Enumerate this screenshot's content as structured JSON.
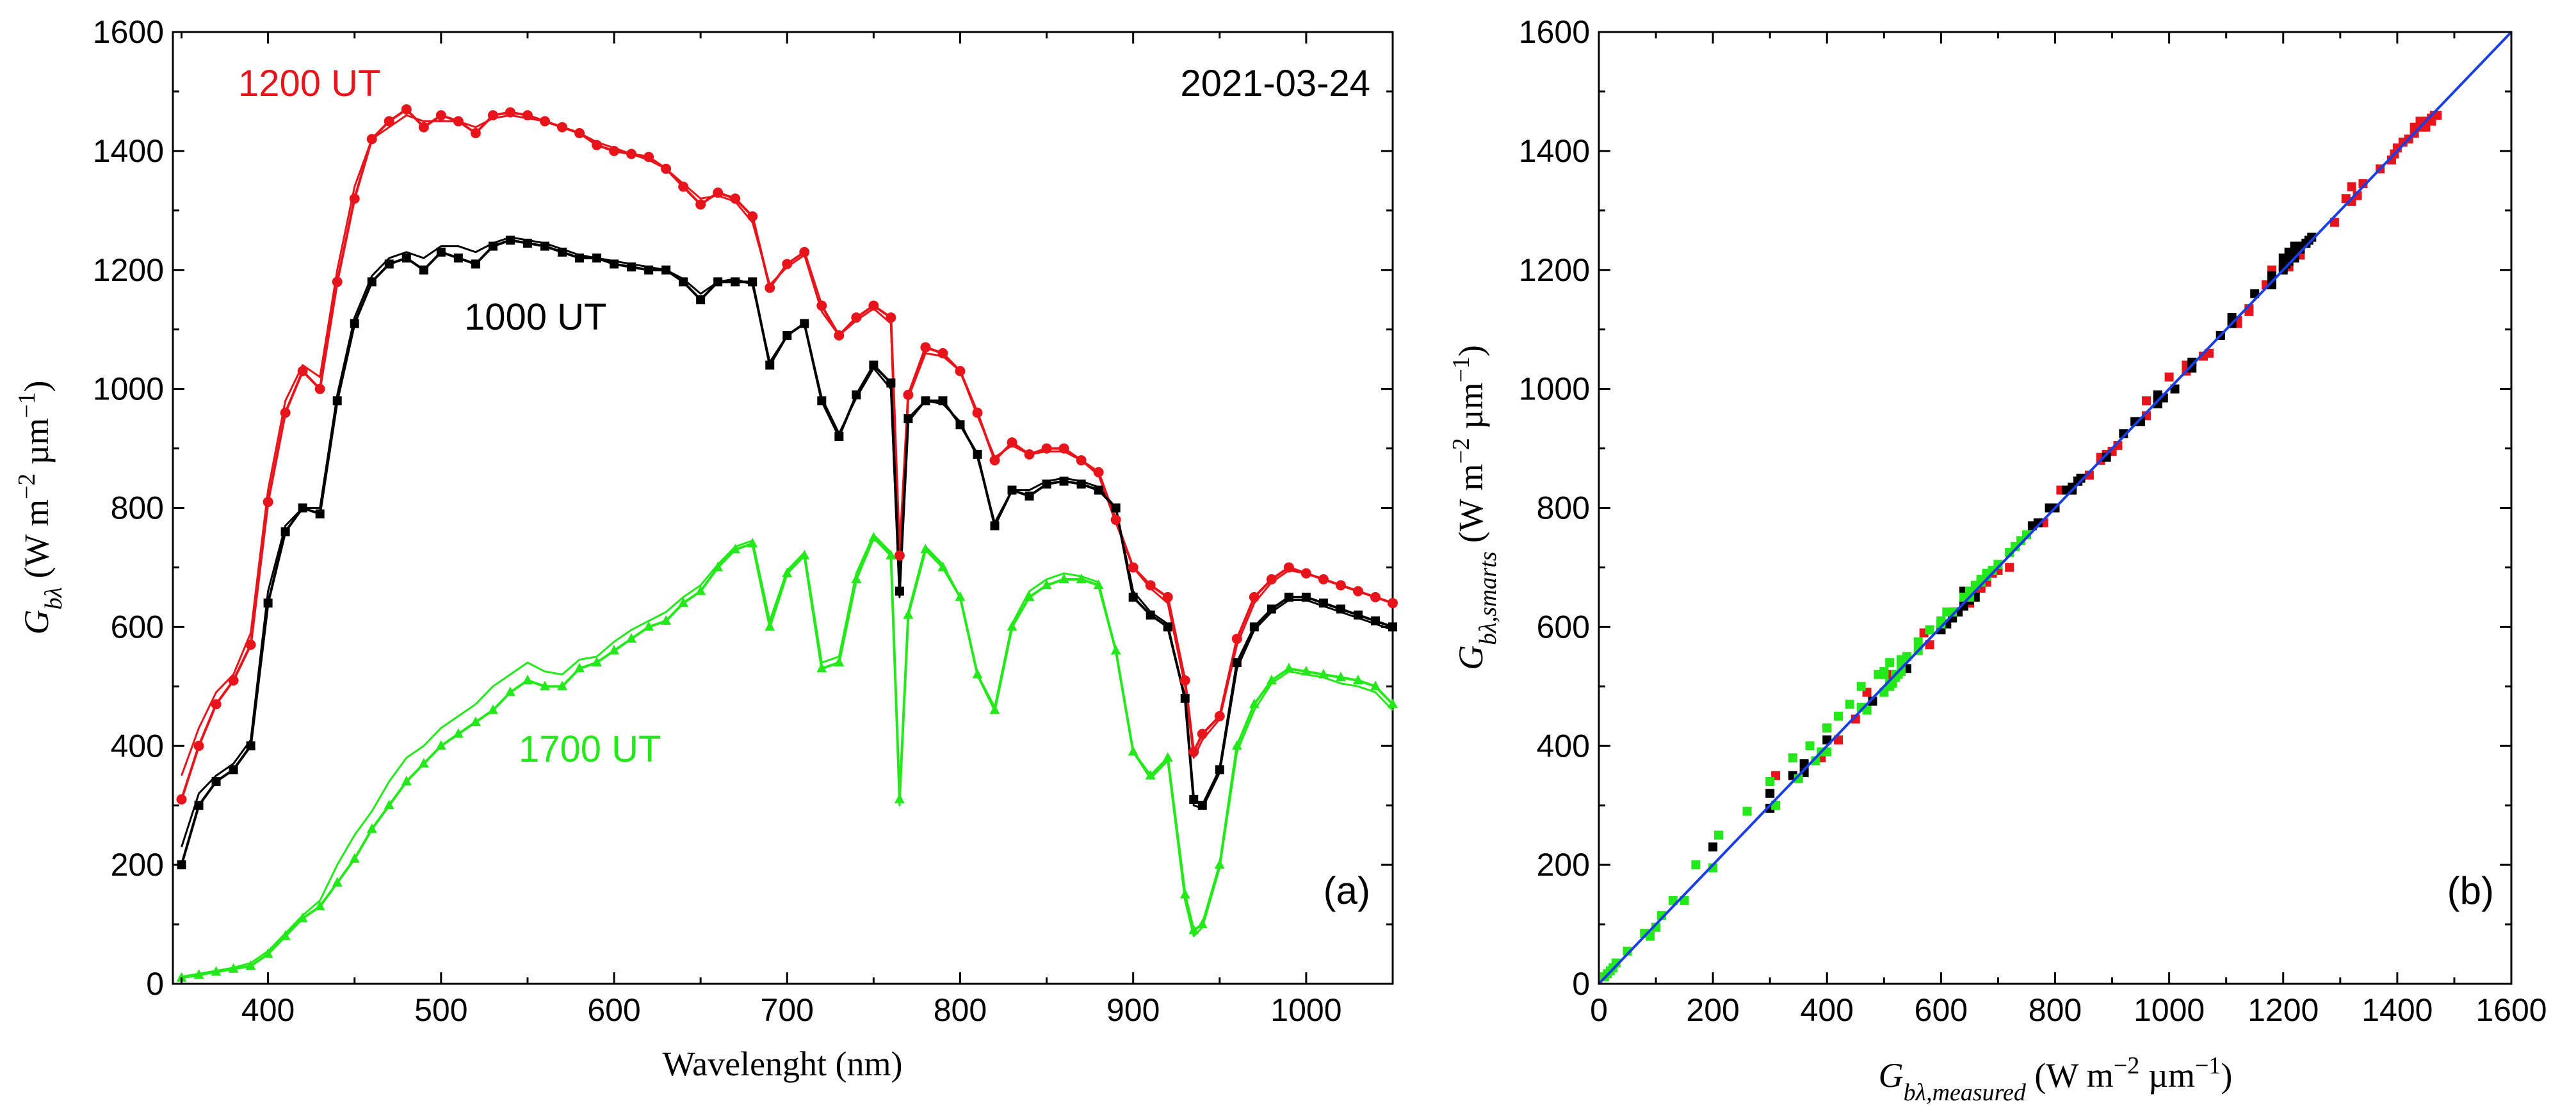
{
  "colors": {
    "red": "#e8141c",
    "black": "#000000",
    "green": "#23e81a",
    "blue": "#1a3ee6"
  },
  "chart_data": [
    {
      "panel": "a",
      "type": "line",
      "panel_label": "(a)",
      "date_label": "2021-03-24",
      "xlabel": "Wavelenght (nm)",
      "ylabel": {
        "symbol": "Gbλ",
        "unit": "(W m-2 µm-1)"
      },
      "xlim": [
        345,
        1050
      ],
      "ylim": [
        0,
        1600
      ],
      "grid": false,
      "xticks": [
        "400",
        "500",
        "600",
        "700",
        "800",
        "900",
        "1000"
      ],
      "yticks": [
        "0",
        "200",
        "400",
        "600",
        "800",
        "1000",
        "1200",
        "1400",
        "1600"
      ],
      "series": [
        {
          "name": "1200 UT",
          "color": "#e8141c",
          "marker": "circle",
          "x": [
            350,
            360,
            370,
            380,
            390,
            400,
            410,
            420,
            430,
            440,
            450,
            460,
            470,
            480,
            490,
            500,
            510,
            520,
            530,
            540,
            550,
            560,
            570,
            580,
            590,
            600,
            610,
            620,
            630,
            640,
            650,
            660,
            670,
            680,
            690,
            700,
            710,
            720,
            730,
            740,
            750,
            760,
            765,
            770,
            780,
            790,
            800,
            810,
            820,
            830,
            840,
            850,
            860,
            870,
            880,
            890,
            900,
            910,
            920,
            930,
            935,
            940,
            950,
            960,
            970,
            980,
            990,
            1000,
            1010,
            1020,
            1030,
            1040,
            1050
          ],
          "y": [
            310,
            400,
            470,
            510,
            570,
            810,
            960,
            1030,
            1000,
            1180,
            1320,
            1420,
            1450,
            1470,
            1440,
            1460,
            1450,
            1430,
            1460,
            1465,
            1460,
            1450,
            1440,
            1430,
            1410,
            1400,
            1395,
            1390,
            1370,
            1340,
            1310,
            1330,
            1320,
            1290,
            1170,
            1210,
            1230,
            1140,
            1090,
            1120,
            1140,
            1120,
            720,
            990,
            1070,
            1060,
            1030,
            960,
            880,
            910,
            890,
            900,
            900,
            880,
            860,
            780,
            700,
            670,
            650,
            510,
            390,
            420,
            450,
            580,
            650,
            680,
            700,
            690,
            680,
            670,
            660,
            650,
            640
          ],
          "model_y": [
            350,
            430,
            490,
            520,
            590,
            830,
            980,
            1040,
            1020,
            1200,
            1340,
            1420,
            1440,
            1460,
            1450,
            1450,
            1450,
            1440,
            1455,
            1460,
            1455,
            1450,
            1440,
            1430,
            1415,
            1405,
            1395,
            1385,
            1370,
            1345,
            1320,
            1325,
            1315,
            1280,
            1175,
            1205,
            1225,
            1130,
            1090,
            1115,
            1135,
            1110,
            700,
            985,
            1060,
            1055,
            1030,
            955,
            885,
            905,
            890,
            895,
            895,
            880,
            855,
            775,
            700,
            665,
            640,
            500,
            380,
            410,
            445,
            570,
            640,
            675,
            695,
            690,
            680,
            670,
            660,
            650,
            640
          ]
        },
        {
          "name": "1000 UT",
          "color": "#000000",
          "marker": "square",
          "x": [
            350,
            360,
            370,
            380,
            390,
            400,
            410,
            420,
            430,
            440,
            450,
            460,
            470,
            480,
            490,
            500,
            510,
            520,
            530,
            540,
            550,
            560,
            570,
            580,
            590,
            600,
            610,
            620,
            630,
            640,
            650,
            660,
            670,
            680,
            690,
            700,
            710,
            720,
            730,
            740,
            750,
            760,
            765,
            770,
            780,
            790,
            800,
            810,
            820,
            830,
            840,
            850,
            860,
            870,
            880,
            890,
            900,
            910,
            920,
            930,
            935,
            940,
            950,
            960,
            970,
            980,
            990,
            1000,
            1010,
            1020,
            1030,
            1040,
            1050
          ],
          "y": [
            200,
            300,
            340,
            360,
            400,
            640,
            760,
            800,
            790,
            980,
            1110,
            1180,
            1210,
            1220,
            1200,
            1230,
            1220,
            1210,
            1240,
            1250,
            1245,
            1240,
            1230,
            1220,
            1220,
            1210,
            1205,
            1200,
            1200,
            1180,
            1150,
            1180,
            1180,
            1180,
            1040,
            1090,
            1110,
            980,
            920,
            990,
            1040,
            1010,
            660,
            950,
            980,
            980,
            940,
            890,
            770,
            830,
            820,
            840,
            845,
            840,
            830,
            800,
            650,
            620,
            600,
            480,
            310,
            300,
            360,
            540,
            600,
            630,
            650,
            650,
            640,
            630,
            620,
            610,
            600
          ],
          "model_y": [
            230,
            320,
            350,
            370,
            410,
            660,
            770,
            800,
            800,
            990,
            1120,
            1190,
            1220,
            1230,
            1220,
            1240,
            1240,
            1230,
            1245,
            1255,
            1250,
            1245,
            1235,
            1225,
            1220,
            1215,
            1210,
            1205,
            1200,
            1185,
            1160,
            1180,
            1185,
            1175,
            1045,
            1090,
            1110,
            985,
            925,
            985,
            1035,
            1000,
            650,
            945,
            980,
            975,
            945,
            885,
            775,
            830,
            830,
            845,
            850,
            845,
            835,
            800,
            660,
            625,
            605,
            475,
            300,
            295,
            355,
            530,
            595,
            625,
            645,
            645,
            635,
            625,
            615,
            605,
            595
          ]
        },
        {
          "name": "1700 UT",
          "color": "#23e81a",
          "marker": "triangle",
          "x": [
            350,
            360,
            370,
            380,
            390,
            400,
            410,
            420,
            430,
            440,
            450,
            460,
            470,
            480,
            490,
            500,
            510,
            520,
            530,
            540,
            550,
            560,
            570,
            580,
            590,
            600,
            610,
            620,
            630,
            640,
            650,
            660,
            670,
            680,
            690,
            700,
            710,
            720,
            730,
            740,
            750,
            760,
            765,
            770,
            780,
            790,
            800,
            810,
            820,
            830,
            840,
            850,
            860,
            870,
            880,
            890,
            900,
            910,
            920,
            930,
            935,
            940,
            950,
            960,
            970,
            980,
            990,
            1000,
            1010,
            1020,
            1030,
            1040,
            1050
          ],
          "y": [
            10,
            15,
            20,
            25,
            30,
            50,
            80,
            110,
            130,
            170,
            210,
            260,
            300,
            340,
            370,
            400,
            420,
            440,
            460,
            490,
            510,
            500,
            500,
            530,
            540,
            560,
            580,
            600,
            610,
            640,
            660,
            700,
            730,
            740,
            600,
            690,
            720,
            530,
            540,
            680,
            750,
            720,
            310,
            620,
            730,
            700,
            650,
            520,
            460,
            600,
            650,
            670,
            680,
            680,
            670,
            560,
            390,
            350,
            380,
            150,
            90,
            100,
            200,
            400,
            470,
            510,
            530,
            525,
            520,
            515,
            510,
            500,
            470
          ],
          "model_y": [
            12,
            17,
            22,
            27,
            35,
            55,
            85,
            115,
            140,
            200,
            250,
            290,
            340,
            380,
            400,
            430,
            450,
            470,
            500,
            520,
            540,
            525,
            520,
            545,
            550,
            575,
            595,
            610,
            625,
            650,
            670,
            705,
            735,
            745,
            610,
            695,
            725,
            540,
            550,
            690,
            755,
            725,
            300,
            625,
            735,
            705,
            650,
            520,
            465,
            605,
            660,
            680,
            690,
            685,
            675,
            560,
            390,
            345,
            375,
            140,
            80,
            95,
            195,
            390,
            460,
            505,
            525,
            520,
            515,
            505,
            500,
            490,
            460
          ]
        }
      ],
      "annotations": [
        "1200 UT",
        "1000 UT",
        "1700 UT",
        "2021-03-24",
        "(a)"
      ]
    },
    {
      "panel": "b",
      "type": "scatter",
      "panel_label": "(b)",
      "xlabel": {
        "symbol": "Gbλ,measured",
        "unit": "(W m-2 µm-1)"
      },
      "ylabel": {
        "symbol": "Gbλ,smarts",
        "unit": "(W m-2 µm-1)"
      },
      "xlim": [
        0,
        1600
      ],
      "ylim": [
        0,
        1600
      ],
      "grid": false,
      "xticks": [
        "0",
        "200",
        "400",
        "600",
        "800",
        "1000",
        "1200",
        "1400",
        "1600"
      ],
      "yticks": [
        "0",
        "200",
        "400",
        "600",
        "800",
        "1000",
        "1200",
        "1400",
        "1600"
      ],
      "reference_line": {
        "name": "1:1 line",
        "x": [
          0,
          1600
        ],
        "y": [
          0,
          1600
        ],
        "color": "#1a3ee6"
      },
      "series": [
        {
          "name": "1200 UT",
          "color": "#e8141c",
          "marker": "square",
          "source_series": 0
        },
        {
          "name": "1000 UT",
          "color": "#000000",
          "marker": "square",
          "source_series": 1
        },
        {
          "name": "1700 UT",
          "color": "#23e81a",
          "marker": "square",
          "source_series": 2
        }
      ]
    }
  ]
}
